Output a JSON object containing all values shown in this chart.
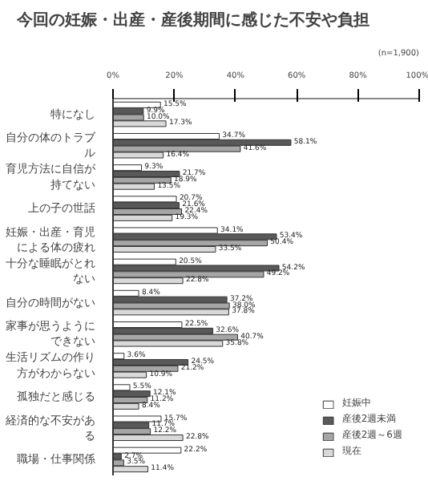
{
  "chart_data": {
    "type": "bar",
    "orientation": "horizontal",
    "title": "今回の妊娠・出産・産後期間に感じた不安や負担",
    "annotations": [
      "(n=1,900)"
    ],
    "categories": [
      "特になし",
      "自分の体のトラブル",
      "育児方法に自信が持てない",
      "上の子の世話",
      "妊娠・出産・育児による体の疲れ",
      "十分な睡眠がとれない",
      "自分の時間がない",
      "家事が思うようにできない",
      "生活リズムの作り方がわからない",
      "孤独だと感じる",
      "経済的な不安がある",
      "職場・仕事関係"
    ],
    "series": [
      {
        "name": "妊娠中",
        "color": "#ffffff",
        "values": [
          15.5,
          34.7,
          9.3,
          20.7,
          34.1,
          20.5,
          8.4,
          22.5,
          3.6,
          5.5,
          15.7,
          22.2
        ],
        "value_labels": [
          "15.5%",
          "34.7%",
          "9.3%",
          "20.7%",
          "34.1%",
          "20.5%",
          "8.4%",
          "22.5%",
          "3.6%",
          "5.5%",
          "15.7%",
          "22.2%"
        ]
      },
      {
        "name": "産後2週未満",
        "color": "#595959",
        "values": [
          9.9,
          58.1,
          21.7,
          21.6,
          53.4,
          54.2,
          37.2,
          32.6,
          24.5,
          12.1,
          11.7,
          2.7
        ],
        "value_labels": [
          "9.9%",
          "58.1%",
          "21.7%",
          "21.6%",
          "53.4%",
          "54.2%",
          "37.2%",
          "32.6%",
          "24.5%",
          "12.1%",
          "11.7%",
          "2.7%"
        ]
      },
      {
        "name": "産後2週～6週",
        "color": "#a6a6a6",
        "values": [
          10.0,
          41.6,
          18.9,
          22.4,
          50.4,
          49.2,
          38.0,
          40.7,
          21.2,
          11.2,
          12.2,
          3.5
        ],
        "value_labels": [
          "10.0%",
          "41.6%",
          "18.9%",
          "22.4%",
          "50.4%",
          "49.2%",
          "38.0%",
          "40.7%",
          "21.2%",
          "11.2%",
          "12.2%",
          "3.5%"
        ]
      },
      {
        "name": "現在",
        "color": "#d9d9d9",
        "values": [
          17.3,
          16.4,
          13.5,
          19.3,
          33.5,
          22.8,
          37.8,
          35.8,
          10.9,
          8.4,
          22.8,
          11.4
        ],
        "value_labels": [
          "17.3%",
          "16.4%",
          "13.5%",
          "19.3%",
          "33.5%",
          "22.8%",
          "37.8%",
          "35.8%",
          "10.9%",
          "8.4%",
          "22.8%",
          "11.4%"
        ]
      }
    ],
    "xlim": [
      0,
      100
    ],
    "xticks": [
      {
        "value": 0,
        "label": "0%"
      },
      {
        "value": 20,
        "label": "20%"
      },
      {
        "value": 40,
        "label": "40%"
      },
      {
        "value": 60,
        "label": "60%"
      },
      {
        "value": 80,
        "label": "80%"
      },
      {
        "value": 100,
        "label": "100%"
      }
    ],
    "legend": "bottom right"
  }
}
